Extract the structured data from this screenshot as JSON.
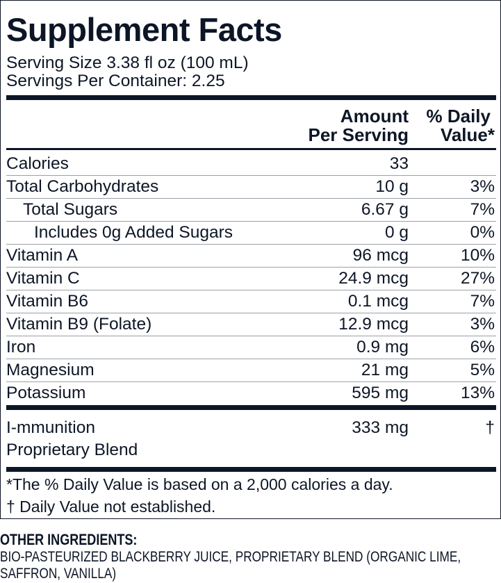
{
  "title": "Supplement Facts",
  "serving_size": "Serving Size 3.38 fl oz (100 mL)",
  "servings_per_container": "Servings Per Container: 2.25",
  "header": {
    "amount": [
      "Amount",
      "Per Serving"
    ],
    "daily_value": [
      "% Daily",
      "Value*"
    ]
  },
  "rows": [
    {
      "name": "Calories",
      "amount": "33",
      "indent": 0
    },
    {
      "name": "Total Carbohydrates",
      "amount": "10 g",
      "dv": "3%",
      "indent": 0
    },
    {
      "name": "Total Sugars",
      "amount": "6.67 g",
      "dv": "7%",
      "indent": 1
    },
    {
      "name": "Includes 0g Added Sugars",
      "amount": "0 g",
      "dv": "0%",
      "indent": 2
    },
    {
      "name": "Vitamin A",
      "amount": "96 mcg",
      "dv": "10%",
      "indent": 0
    },
    {
      "name": "Vitamin C",
      "amount": "24.9 mcg",
      "dv": "27%",
      "indent": 0
    },
    {
      "name": "Vitamin B6",
      "amount": "0.1 mcg",
      "dv": "7%",
      "indent": 0
    },
    {
      "name": "Vitamin B9 (Folate)",
      "amount": "12.9 mcg",
      "dv": "3%",
      "indent": 0
    },
    {
      "name": "Iron",
      "amount": "0.9 mg",
      "dv": "6%",
      "indent": 0
    },
    {
      "name": "Magnesium",
      "amount": "21 mg",
      "dv": "5%",
      "indent": 0
    },
    {
      "name": "Potassium",
      "amount": "595 mg",
      "dv": "13%",
      "indent": 0
    }
  ],
  "blend": {
    "name": [
      "I-mmunition",
      "Proprietary Blend"
    ],
    "amount": "333 mg",
    "dv": "†"
  },
  "footnotes": [
    "*The % Daily Value is based on a 2,000 calories a day.",
    "† Daily Value not established."
  ],
  "other_ingredients": {
    "heading": "OTHER INGREDIENTS:",
    "text": "BIO-PASTEURIZED BLACKBERRY JUICE, PROPRIETARY BLEND (ORGANIC LIME, SAFFRON, VANILLA)"
  }
}
